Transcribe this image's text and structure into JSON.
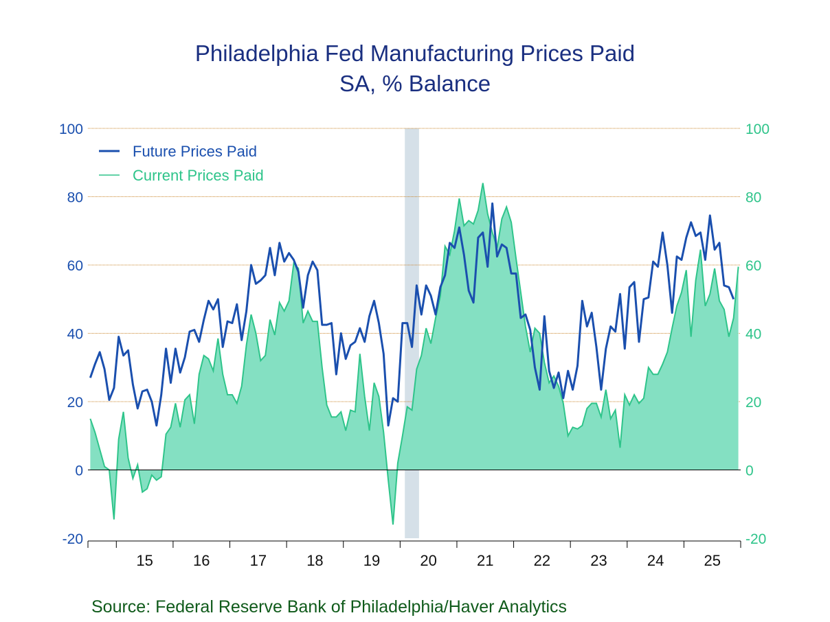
{
  "chart_data": {
    "type": "area",
    "title": "Philadelphia Fed Manufacturing Prices Paid",
    "subtitle": "SA, % Balance",
    "source": "Source:  Federal Reserve Bank of Philadelphia/Haver Analytics",
    "x_start": "2014-07",
    "x_end": "2025-12",
    "x_tick_labels": [
      "15",
      "16",
      "17",
      "18",
      "19",
      "20",
      "21",
      "22",
      "23",
      "24",
      "25"
    ],
    "ylim": [
      -20,
      100
    ],
    "y_ticks": [
      -20,
      0,
      20,
      40,
      60,
      80,
      100
    ],
    "grid": true,
    "legend_position": "top-left",
    "recession_shading": {
      "start": "2020-02",
      "end": "2020-04",
      "color": "#d5e0e8"
    },
    "series": [
      {
        "name": "Future Prices Paid",
        "style": "line",
        "color": "#1a4fae",
        "axis": "left",
        "values": [
          27.0,
          31.0,
          34.5,
          29.5,
          20.5,
          24.0,
          39.0,
          33.5,
          35.0,
          25.0,
          18.0,
          23.0,
          23.5,
          20.0,
          13.0,
          22.0,
          35.5,
          25.5,
          35.5,
          28.5,
          33.0,
          40.5,
          41.0,
          37.5,
          44.0,
          49.5,
          47.0,
          50.0,
          36.0,
          43.5,
          43.0,
          48.5,
          38.0,
          46.5,
          60.0,
          54.5,
          55.5,
          57.0,
          65.0,
          57.0,
          66.5,
          61.0,
          63.5,
          61.5,
          58.0,
          47.5,
          57.0,
          61.0,
          58.5,
          42.5,
          42.5,
          43.0,
          28.0,
          40.0,
          32.5,
          36.5,
          37.5,
          41.5,
          37.5,
          45.0,
          49.5,
          43.0,
          34.0,
          13.0,
          21.0,
          20.0,
          43.0,
          43.0,
          36.0,
          54.0,
          45.5,
          54.0,
          51.0,
          45.5,
          53.5,
          57.0,
          66.5,
          65.0,
          71.0,
          63.0,
          52.5,
          49.0,
          68.0,
          69.5,
          59.5,
          78.0,
          62.5,
          66.0,
          65.0,
          57.5,
          57.5,
          44.5,
          45.5,
          41.0,
          30.0,
          23.5,
          45.0,
          29.0,
          24.0,
          28.5,
          21.0,
          29.0,
          23.5,
          30.5,
          49.5,
          42.0,
          46.0,
          36.0,
          23.5,
          35.5,
          42.0,
          40.5,
          51.5,
          35.5,
          53.5,
          55.0,
          37.5,
          50.0,
          50.5,
          61.0,
          59.5,
          69.5,
          60.0,
          46.0,
          62.5,
          61.5,
          68.0,
          72.5,
          68.5,
          69.5,
          61.5,
          74.5,
          64.5,
          66.5,
          54.0,
          53.5,
          50.0
        ]
      },
      {
        "name": "Current Prices Paid",
        "style": "area",
        "color": "#2ec48a",
        "fill": "#84e0c2",
        "axis": "right",
        "values": [
          15.0,
          11.0,
          6.0,
          1.0,
          0.0,
          -14.5,
          9.0,
          17.0,
          3.5,
          -2.5,
          1.5,
          -6.5,
          -5.5,
          -1.5,
          -3.0,
          -2.0,
          10.5,
          12.5,
          19.5,
          12.5,
          20.5,
          22.0,
          13.5,
          28.0,
          33.5,
          32.5,
          29.0,
          38.5,
          28.0,
          22.0,
          22.0,
          19.5,
          24.5,
          36.5,
          45.5,
          40.0,
          32.0,
          33.5,
          44.0,
          39.5,
          49.0,
          46.5,
          49.5,
          60.5,
          59.0,
          43.0,
          46.5,
          43.5,
          43.5,
          30.0,
          19.0,
          15.5,
          15.5,
          17.0,
          11.5,
          17.5,
          17.0,
          34.0,
          21.5,
          11.5,
          25.5,
          21.5,
          11.0,
          -3.0,
          -16.0,
          2.0,
          10.0,
          18.5,
          17.5,
          29.5,
          33.5,
          41.5,
          37.0,
          44.5,
          51.0,
          65.5,
          63.0,
          70.0,
          79.5,
          71.5,
          73.0,
          72.0,
          76.0,
          84.0,
          75.0,
          69.5,
          65.0,
          73.5,
          77.0,
          72.5,
          62.0,
          52.0,
          42.0,
          34.5,
          41.5,
          40.0,
          31.5,
          25.5,
          27.5,
          24.5,
          19.5,
          10.0,
          12.5,
          12.0,
          13.0,
          18.0,
          19.5,
          19.5,
          15.5,
          23.5,
          15.0,
          17.5,
          6.5,
          22.0,
          19.0,
          22.0,
          19.5,
          21.0,
          30.0,
          28.0,
          28.0,
          31.0,
          34.5,
          41.5,
          48.0,
          52.0,
          58.5,
          39.0,
          55.5,
          64.5,
          48.0,
          51.5,
          59.0,
          49.5,
          47.0,
          39.0,
          44.5,
          59.5
        ]
      }
    ]
  }
}
